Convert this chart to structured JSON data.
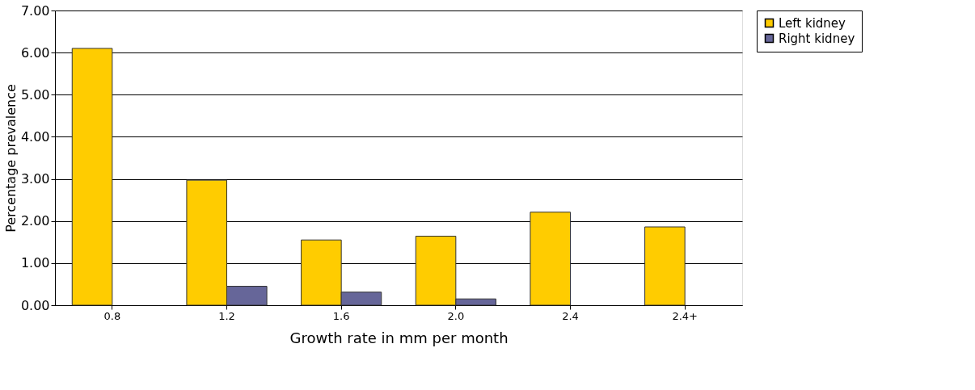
{
  "chart_data": {
    "type": "bar",
    "xlabel": "Growth rate in mm per month",
    "ylabel": "Percentage prevalence",
    "categories": [
      "0.8",
      "1.2",
      "1.6",
      "2.0",
      "2.4",
      "2.4+"
    ],
    "series": [
      {
        "name": "Left kidney",
        "color": "#ffcc00",
        "values": [
          6.1,
          2.97,
          1.55,
          1.64,
          2.21,
          1.86
        ]
      },
      {
        "name": "Right kidney",
        "color": "#666699",
        "values": [
          null,
          0.45,
          0.31,
          0.15,
          null,
          null
        ]
      }
    ],
    "ylim": [
      0,
      7
    ],
    "yticks": [
      {
        "value": 0,
        "label": "0.00"
      },
      {
        "value": 1,
        "label": "1.00"
      },
      {
        "value": 2,
        "label": "2.00"
      },
      {
        "value": 3,
        "label": "3.00"
      },
      {
        "value": 4,
        "label": "4.00"
      },
      {
        "value": 5,
        "label": "5.00"
      },
      {
        "value": 6,
        "label": "6.00"
      },
      {
        "value": 7,
        "label": "7.00"
      }
    ],
    "grid": "y",
    "legend": "right"
  }
}
